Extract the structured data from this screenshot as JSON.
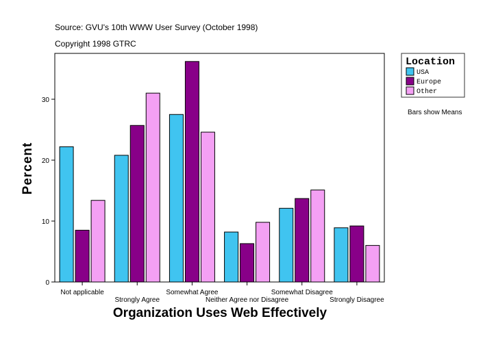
{
  "chart_data": {
    "type": "bar",
    "source": "Source: GVU's 10th WWW User Survey (October 1998)",
    "copyright": "Copyright 1998 GTRC",
    "xlabel": "Organization Uses Web Effectively",
    "ylabel": "Percent",
    "ylim": [
      0,
      37.5
    ],
    "yticks": [
      0,
      10,
      20,
      30
    ],
    "grid": false,
    "legend_title": "Location",
    "legend_placement": "right",
    "note": "Bars show Means",
    "categories": [
      "Not applicable",
      "Strongly Agree",
      "Somewhat Agree",
      "Neither Agree nor Disagree",
      "Somewhat Disagree",
      "Strongly Disagree"
    ],
    "series": [
      {
        "name": "USA",
        "color": "#40C4F0",
        "values": [
          22.2,
          20.8,
          27.5,
          8.2,
          12.1,
          8.9
        ]
      },
      {
        "name": "Europe",
        "color": "#880088",
        "values": [
          8.5,
          25.7,
          36.2,
          6.3,
          13.7,
          9.2
        ]
      },
      {
        "name": "Other",
        "color": "#F4A0F4",
        "values": [
          13.4,
          31.0,
          24.6,
          9.8,
          15.1,
          6.0
        ]
      }
    ]
  }
}
